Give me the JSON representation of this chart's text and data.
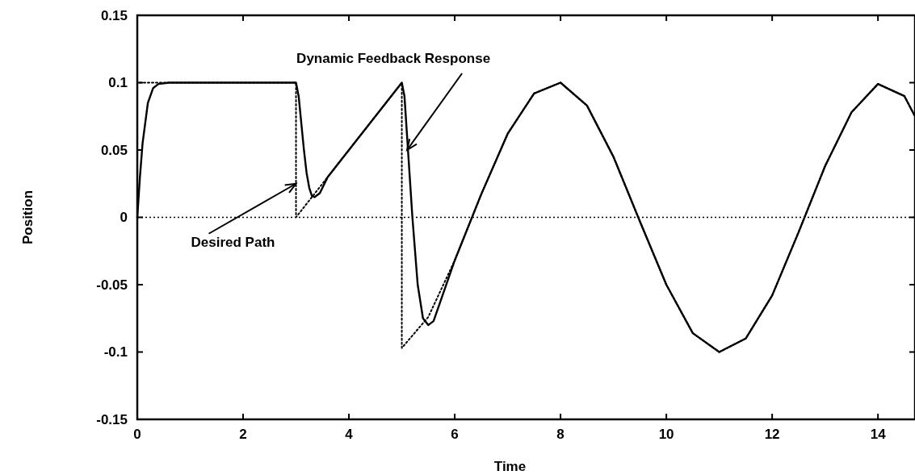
{
  "chart_data": {
    "type": "line",
    "xlabel": "Time",
    "ylabel": "Position",
    "xlim": [
      0,
      14.7
    ],
    "xticks": [
      0,
      2,
      4,
      6,
      8,
      10,
      12,
      14
    ],
    "ylim": [
      -0.15,
      0.15
    ],
    "yticks": [
      -0.15,
      -0.1,
      -0.05,
      0,
      0.05,
      0.1,
      0.15
    ],
    "grid": false,
    "series": [
      {
        "color": "#000000",
        "line_style": "solid",
        "x": [
          0,
          0.05,
          0.1,
          0.2,
          0.3,
          0.4,
          0.6,
          1,
          2,
          3,
          3.05,
          3.1,
          3.15,
          3.2,
          3.25,
          3.3,
          3.35,
          3.45,
          3.6,
          4,
          4.5,
          5,
          5.05,
          5.1,
          5.15,
          5.2,
          5.3,
          5.4,
          5.5,
          5.6,
          6,
          6.5,
          7,
          7.5,
          8,
          8.5,
          9,
          9.5,
          10,
          10.5,
          11,
          11.5,
          12,
          12.5,
          13,
          13.5,
          14,
          14.5,
          14.7
        ],
        "values": [
          0,
          0.03,
          0.055,
          0.085,
          0.096,
          0.099,
          0.1,
          0.1,
          0.1,
          0.1,
          0.09,
          0.07,
          0.05,
          0.033,
          0.022,
          0.016,
          0.015,
          0.018,
          0.03,
          0.05,
          0.075,
          0.1,
          0.09,
          0.06,
          0.03,
          0,
          -0.05,
          -0.075,
          -0.08,
          -0.077,
          -0.032,
          0.017,
          0.062,
          0.092,
          0.1,
          0.083,
          0.045,
          -0.003,
          -0.05,
          -0.086,
          -0.1,
          -0.09,
          -0.058,
          -0.011,
          0.038,
          0.078,
          0.099,
          0.09,
          0.075
        ]
      },
      {
        "color": "#000000",
        "line_style": "dotted",
        "x": [
          0,
          0,
          1,
          2,
          3,
          3,
          4,
          5,
          5,
          5.5,
          6,
          6.5,
          7,
          7.5,
          8,
          8.5,
          9,
          9.5,
          10,
          10.5,
          11,
          11.5,
          12,
          12.5,
          13,
          13.5,
          14,
          14.5,
          14.7
        ],
        "values": [
          0,
          0.1,
          0.1,
          0.1,
          0.1,
          0,
          0.05,
          0.1,
          -0.097,
          -0.074,
          -0.032,
          0.017,
          0.062,
          0.092,
          0.1,
          0.083,
          0.045,
          -0.003,
          -0.05,
          -0.086,
          -0.1,
          -0.09,
          -0.058,
          -0.011,
          0.038,
          0.078,
          0.099,
          0.09,
          0.075
        ]
      }
    ],
    "ref_lines": [
      {
        "axis": "y",
        "value": 0,
        "color": "#000000",
        "line_style": "dotted"
      }
    ],
    "annotations": [
      {
        "text": "Dynamic Feedback Response",
        "x": 5.1,
        "y": 0.05
      },
      {
        "text": "Desired Path",
        "x": 3.0,
        "y": 0.025
      }
    ]
  }
}
